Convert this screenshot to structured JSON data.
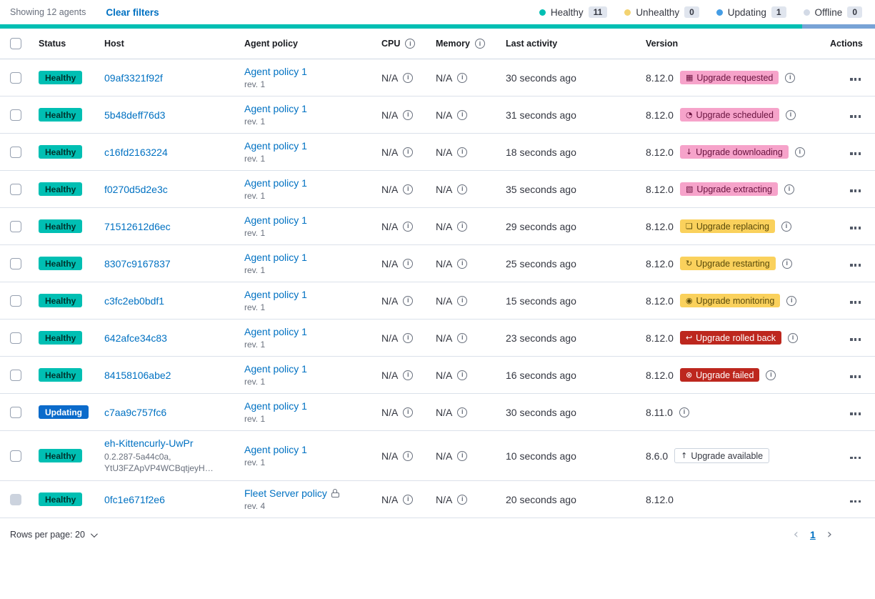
{
  "toolbar": {
    "showing": "Showing 12 agents",
    "clear_filters": "Clear filters"
  },
  "legend": {
    "items": [
      {
        "label": "Healthy",
        "count": "11",
        "dot": "#00bfb3"
      },
      {
        "label": "Unhealthy",
        "count": "0",
        "dot": "#f3d371"
      },
      {
        "label": "Updating",
        "count": "1",
        "dot": "#459de5"
      },
      {
        "label": "Offline",
        "count": "0",
        "dot": "#d3dae6"
      }
    ]
  },
  "status_bar": {
    "segments": [
      {
        "name": "healthy",
        "color": "#00bfb3",
        "pct": 91.7
      },
      {
        "name": "updating",
        "color": "#78a3d6",
        "pct": 8.3
      }
    ]
  },
  "table": {
    "headers": [
      {
        "label": "Status",
        "info": false
      },
      {
        "label": "Host",
        "info": false
      },
      {
        "label": "Agent policy",
        "info": false
      },
      {
        "label": "CPU",
        "info": true
      },
      {
        "label": "Memory",
        "info": true
      },
      {
        "label": "Last activity",
        "info": false
      },
      {
        "label": "Version",
        "info": false
      },
      {
        "label": "Actions",
        "info": false
      }
    ],
    "rows": [
      {
        "status": "Healthy",
        "status_type": "success",
        "host": "09af3321f92f",
        "policy": "Agent policy 1",
        "rev": "rev. 1",
        "cpu": "N/A",
        "memory": "N/A",
        "last_activity": "30 seconds ago",
        "version": "8.12.0",
        "upgrade": {
          "label": "Upgrade requested",
          "type": "accent",
          "icon": "calendar-icon",
          "glyph": "▦"
        },
        "version_info": true
      },
      {
        "status": "Healthy",
        "status_type": "success",
        "host": "5b48deff76d3",
        "policy": "Agent policy 1",
        "rev": "rev. 1",
        "cpu": "N/A",
        "memory": "N/A",
        "last_activity": "31 seconds ago",
        "version": "8.12.0",
        "upgrade": {
          "label": "Upgrade scheduled",
          "type": "accent",
          "icon": "clock-icon",
          "glyph": "◔"
        },
        "version_info": true
      },
      {
        "status": "Healthy",
        "status_type": "success",
        "host": "c16fd2163224",
        "policy": "Agent policy 1",
        "rev": "rev. 1",
        "cpu": "N/A",
        "memory": "N/A",
        "last_activity": "18 seconds ago",
        "version": "8.12.0",
        "upgrade": {
          "label": "Upgrade downloading",
          "type": "accent",
          "icon": "download-icon",
          "glyph": "↓"
        },
        "version_info": true
      },
      {
        "status": "Healthy",
        "status_type": "success",
        "host": "f0270d5d2e3c",
        "policy": "Agent policy 1",
        "rev": "rev. 1",
        "cpu": "N/A",
        "memory": "N/A",
        "last_activity": "35 seconds ago",
        "version": "8.12.0",
        "upgrade": {
          "label": "Upgrade extracting",
          "type": "accent",
          "icon": "package-icon",
          "glyph": "▧"
        },
        "version_info": true
      },
      {
        "status": "Healthy",
        "status_type": "success",
        "host": "71512612d6ec",
        "policy": "Agent policy 1",
        "rev": "rev. 1",
        "cpu": "N/A",
        "memory": "N/A",
        "last_activity": "29 seconds ago",
        "version": "8.12.0",
        "upgrade": {
          "label": "Upgrade replacing",
          "type": "warning",
          "icon": "copy-icon",
          "glyph": "❏"
        },
        "version_info": true
      },
      {
        "status": "Healthy",
        "status_type": "success",
        "host": "8307c9167837",
        "policy": "Agent policy 1",
        "rev": "rev. 1",
        "cpu": "N/A",
        "memory": "N/A",
        "last_activity": "25 seconds ago",
        "version": "8.12.0",
        "upgrade": {
          "label": "Upgrade restarting",
          "type": "warning",
          "icon": "refresh-icon",
          "glyph": "↻"
        },
        "version_info": true
      },
      {
        "status": "Healthy",
        "status_type": "success",
        "host": "c3fc2eb0bdf1",
        "policy": "Agent policy 1",
        "rev": "rev. 1",
        "cpu": "N/A",
        "memory": "N/A",
        "last_activity": "15 seconds ago",
        "version": "8.12.0",
        "upgrade": {
          "label": "Upgrade monitoring",
          "type": "warning",
          "icon": "inspect-icon",
          "glyph": "◉"
        },
        "version_info": true
      },
      {
        "status": "Healthy",
        "status_type": "success",
        "host": "642afce34c83",
        "policy": "Agent policy 1",
        "rev": "rev. 1",
        "cpu": "N/A",
        "memory": "N/A",
        "last_activity": "23 seconds ago",
        "version": "8.12.0",
        "upgrade": {
          "label": "Upgrade rolled back",
          "type": "danger",
          "icon": "return-arrow-icon",
          "glyph": "↩"
        },
        "version_info": true
      },
      {
        "status": "Healthy",
        "status_type": "success",
        "host": "84158106abe2",
        "policy": "Agent policy 1",
        "rev": "rev. 1",
        "cpu": "N/A",
        "memory": "N/A",
        "last_activity": "16 seconds ago",
        "version": "8.12.0",
        "upgrade": {
          "label": "Upgrade failed",
          "type": "danger",
          "icon": "error-cross-icon",
          "glyph": "⊗"
        },
        "version_info": true
      },
      {
        "status": "Updating",
        "status_type": "primary",
        "host": "c7aa9c757fc6",
        "policy": "Agent policy 1",
        "rev": "rev. 1",
        "cpu": "N/A",
        "memory": "N/A",
        "last_activity": "30 seconds ago",
        "version": "8.11.0",
        "version_info": true
      },
      {
        "status": "Healthy",
        "status_type": "success",
        "host": "eh-Kittencurly-UwPr",
        "host_sub": "0.2.287-5a44c0a,\nYtU3FZApVP4WCBqtjeyH…",
        "policy": "Agent policy 1",
        "rev": "rev. 1",
        "cpu": "N/A",
        "memory": "N/A",
        "last_activity": "10 seconds ago",
        "version": "8.6.0",
        "upgrade": {
          "label": "Upgrade available",
          "type": "hollow",
          "icon": "arrow-up-icon",
          "glyph": "↑"
        },
        "version_info": false
      },
      {
        "status": "Healthy",
        "status_type": "success",
        "host": "0fc1e671f2e6",
        "policy": "Fleet Server policy",
        "policy_locked": true,
        "rev": "rev. 4",
        "cpu": "N/A",
        "memory": "N/A",
        "last_activity": "20 seconds ago",
        "version": "8.12.0",
        "version_info": false,
        "checkbox_disabled": true
      }
    ]
  },
  "footer": {
    "rows_per_page": "Rows per page: 20",
    "active_page": "1"
  }
}
